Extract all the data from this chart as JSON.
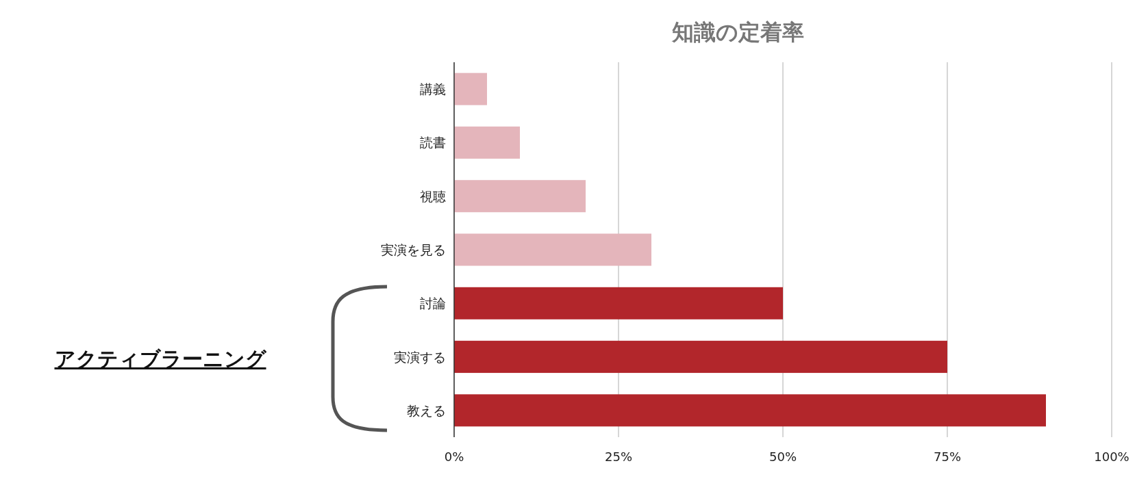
{
  "chart_data": {
    "type": "bar",
    "orientation": "horizontal",
    "title": "知識の定着率",
    "categories": [
      "講義",
      "読書",
      "視聴",
      "実演を見る",
      "討論",
      "実演する",
      "教える"
    ],
    "values": [
      5,
      10,
      20,
      30,
      50,
      75,
      90
    ],
    "colors": [
      "#e3b4ba",
      "#e3b4ba",
      "#e3b4ba",
      "#e3b4ba",
      "#b02227",
      "#b02227",
      "#b02227"
    ],
    "xlim": [
      0,
      100
    ],
    "xticks": [
      {
        "value": 0,
        "label": "0%"
      },
      {
        "value": 25,
        "label": "25%"
      },
      {
        "value": 50,
        "label": "50%"
      },
      {
        "value": 75,
        "label": "75%"
      },
      {
        "value": 100,
        "label": "100%"
      }
    ],
    "grid": "x",
    "annotations": [
      "アクティブラーニング"
    ]
  }
}
